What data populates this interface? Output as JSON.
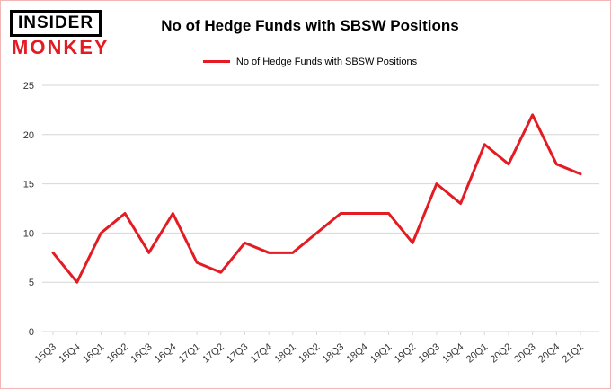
{
  "brand": {
    "line1": "INSIDER",
    "line2": "MONKEY"
  },
  "header": {
    "title": "No of Hedge Funds with SBSW Positions"
  },
  "legend": {
    "label": "No of Hedge Funds with SBSW Positions",
    "color": "#e31b23"
  },
  "chart_data": {
    "type": "line",
    "title": "No of Hedge Funds with SBSW Positions",
    "categories": [
      "15Q3",
      "15Q4",
      "16Q1",
      "16Q2",
      "16Q3",
      "16Q4",
      "17Q1",
      "17Q2",
      "17Q3",
      "17Q4",
      "18Q1",
      "18Q2",
      "18Q3",
      "18Q4",
      "19Q1",
      "19Q2",
      "19Q3",
      "19Q4",
      "20Q1",
      "20Q2",
      "20Q3",
      "20Q4",
      "21Q1"
    ],
    "values": [
      8,
      5,
      10,
      12,
      8,
      12,
      7,
      6,
      9,
      8,
      8,
      10,
      12,
      12,
      12,
      9,
      15,
      13,
      19,
      17,
      22,
      17,
      16
    ],
    "xlabel": "",
    "ylabel": "",
    "ylim": [
      0,
      25
    ],
    "yticks": [
      0,
      5,
      10,
      15,
      20,
      25
    ],
    "grid": true,
    "legend_position": "top",
    "line_color": "#e31b23",
    "grid_color": "#d6d6d6",
    "tick_label_color": "#333333"
  }
}
